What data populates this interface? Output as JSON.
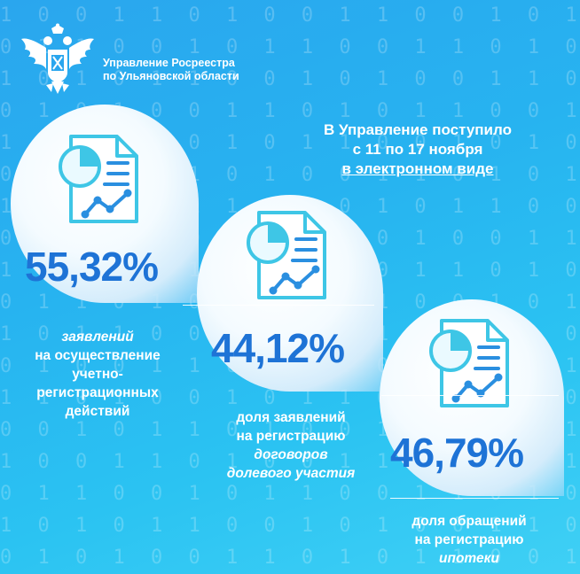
{
  "organization": {
    "line1": "Управление Росреестра",
    "line2": "по Ульяновской области",
    "logo_icon": "double-headed-eagle-emblem"
  },
  "headline": {
    "line1": "В Управление поступило",
    "line2": "с 11 по 17 ноября",
    "line3": "в электронном виде"
  },
  "stats": [
    {
      "value": "55,32%",
      "caption_italic": "заявлений",
      "caption_rest": [
        "на осуществление",
        "учетно-",
        "регистрационных",
        "действий"
      ],
      "icon": "document-chart-icon"
    },
    {
      "value": "44,12%",
      "caption_pre": [
        "доля заявлений",
        "на регистрацию"
      ],
      "caption_italic": [
        "договоров",
        "долевого участия"
      ],
      "icon": "document-chart-icon"
    },
    {
      "value": "46,79%",
      "caption_pre": [
        "доля обращений",
        "на регистрацию"
      ],
      "caption_italic": [
        "ипотеки"
      ],
      "icon": "document-chart-icon"
    }
  ],
  "colors": {
    "background": "#2bb4f0",
    "percent": "#1e73d6",
    "icon_stroke": "#3ec6e6",
    "icon_accent": "#2a8fe0"
  }
}
